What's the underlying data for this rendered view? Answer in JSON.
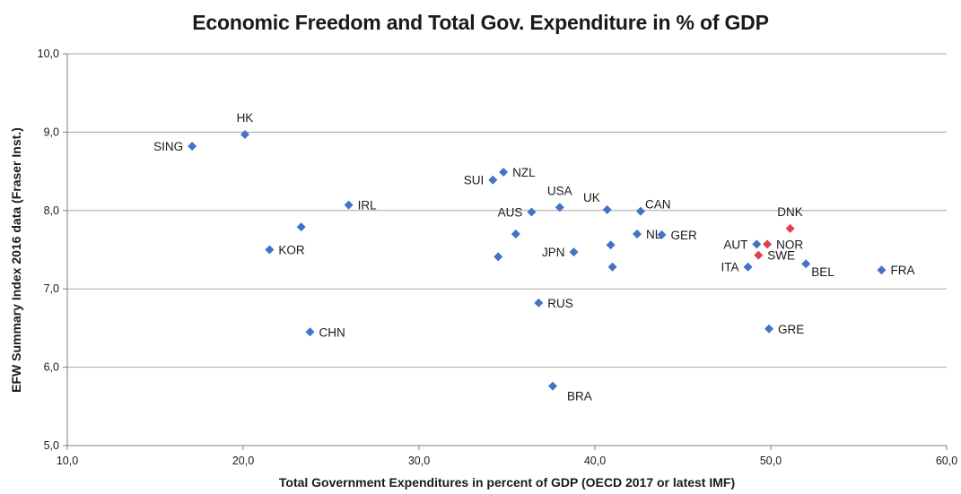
{
  "chart_data": {
    "type": "scatter",
    "title": "Economic Freedom and Total Gov. Expenditure in % of GDP",
    "xlabel": "Total Government Expenditures in percent of GDP (OECD 2017 or latest IMF)",
    "ylabel": "EFW Summary Index 2016 data (Fraser Inst.)",
    "xlim": [
      10,
      60
    ],
    "ylim": [
      5,
      10
    ],
    "xticks": [
      10,
      20,
      30,
      40,
      50,
      60
    ],
    "yticks": [
      5,
      6,
      7,
      8,
      9,
      10
    ],
    "xtick_labels": [
      "10,0",
      "20,0",
      "30,0",
      "40,0",
      "50,0",
      "60,0"
    ],
    "ytick_labels": [
      "5,0",
      "6,0",
      "7,0",
      "8,0",
      "9,0",
      "10,0"
    ],
    "grid": "horizontal",
    "colors": {
      "default": "#4472C4",
      "highlight": "#E04050",
      "grid": "#a6a6a6",
      "axis": "#7f7f7f"
    },
    "points": [
      {
        "x": 17.1,
        "y": 8.82,
        "label": "SING",
        "pos": "left",
        "group": "default"
      },
      {
        "x": 20.1,
        "y": 8.97,
        "label": "HK",
        "pos": "above",
        "group": "default"
      },
      {
        "x": 26.0,
        "y": 8.07,
        "label": "IRL",
        "pos": "right",
        "group": "default"
      },
      {
        "x": 23.3,
        "y": 7.79,
        "label": "",
        "pos": "none",
        "group": "default"
      },
      {
        "x": 21.5,
        "y": 7.5,
        "label": "KOR",
        "pos": "right",
        "group": "default"
      },
      {
        "x": 23.8,
        "y": 6.45,
        "label": "CHN",
        "pos": "right",
        "group": "default"
      },
      {
        "x": 34.8,
        "y": 8.49,
        "label": "NZL",
        "pos": "right",
        "group": "default"
      },
      {
        "x": 34.2,
        "y": 8.39,
        "label": "SUI",
        "pos": "left",
        "group": "default"
      },
      {
        "x": 36.4,
        "y": 7.98,
        "label": "AUS",
        "pos": "left",
        "group": "default"
      },
      {
        "x": 38.0,
        "y": 8.04,
        "label": "USA",
        "pos": "above",
        "group": "default"
      },
      {
        "x": 35.5,
        "y": 7.7,
        "label": "",
        "pos": "none",
        "group": "default"
      },
      {
        "x": 34.5,
        "y": 7.41,
        "label": "",
        "pos": "none",
        "group": "default"
      },
      {
        "x": 38.8,
        "y": 7.47,
        "label": "JPN",
        "pos": "left",
        "group": "default"
      },
      {
        "x": 36.8,
        "y": 6.82,
        "label": "RUS",
        "pos": "right",
        "group": "default"
      },
      {
        "x": 37.6,
        "y": 5.76,
        "label": "BRA",
        "pos": "below-right",
        "group": "default"
      },
      {
        "x": 40.7,
        "y": 8.01,
        "label": "UK",
        "pos": "left-above",
        "group": "default"
      },
      {
        "x": 42.6,
        "y": 7.99,
        "label": "CAN",
        "pos": "right-above",
        "group": "default"
      },
      {
        "x": 40.9,
        "y": 7.56,
        "label": "",
        "pos": "none",
        "group": "default"
      },
      {
        "x": 42.4,
        "y": 7.7,
        "label": "NL",
        "pos": "right",
        "group": "default"
      },
      {
        "x": 43.8,
        "y": 7.69,
        "label": "GER",
        "pos": "right",
        "group": "default"
      },
      {
        "x": 41.0,
        "y": 7.28,
        "label": "",
        "pos": "none",
        "group": "default"
      },
      {
        "x": 49.2,
        "y": 7.57,
        "label": "AUT",
        "pos": "left",
        "group": "default"
      },
      {
        "x": 48.7,
        "y": 7.28,
        "label": "ITA",
        "pos": "left",
        "group": "default"
      },
      {
        "x": 51.1,
        "y": 7.77,
        "label": "DNK",
        "pos": "above",
        "group": "highlight"
      },
      {
        "x": 49.8,
        "y": 7.57,
        "label": "NOR",
        "pos": "right",
        "group": "highlight"
      },
      {
        "x": 49.3,
        "y": 7.43,
        "label": "SWE",
        "pos": "right",
        "group": "highlight"
      },
      {
        "x": 52.0,
        "y": 7.32,
        "label": "BEL",
        "pos": "right-below",
        "group": "default"
      },
      {
        "x": 56.3,
        "y": 7.24,
        "label": "FRA",
        "pos": "right",
        "group": "default"
      },
      {
        "x": 49.9,
        "y": 6.49,
        "label": "GRE",
        "pos": "right",
        "group": "default"
      }
    ]
  }
}
